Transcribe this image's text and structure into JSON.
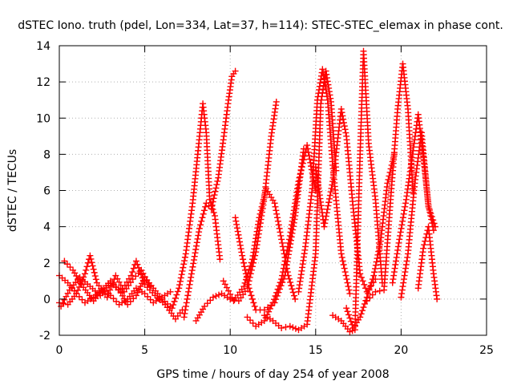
{
  "chart_data": {
    "type": "scatter",
    "title": "dSTEC Iono. truth (pdel, Lon=334, Lat=37, h=114): STEC-STEC_elemax in phase cont.",
    "xlabel": "GPS time / hours of day 254 of year 2008",
    "ylabel": "dSTEC  / TECUs",
    "xlim": [
      0,
      25
    ],
    "ylim": [
      -2,
      14
    ],
    "x_ticks": [
      0,
      5,
      10,
      15,
      20,
      25
    ],
    "y_ticks": [
      -2,
      0,
      2,
      4,
      6,
      8,
      10,
      12,
      14
    ],
    "grid": true,
    "marker": "plus",
    "color": "#ff0000",
    "series": [
      {
        "x": [
          0.0,
          0.5,
          1.0,
          1.5,
          2.0,
          2.5,
          3.0,
          3.5,
          4.0,
          4.5,
          5.0,
          5.5,
          6.0,
          6.5
        ],
        "y": [
          1.3,
          0.9,
          0.3,
          -0.2,
          0.1,
          0.5,
          0.2,
          -0.3,
          0.0,
          0.6,
          0.3,
          -0.2,
          0.1,
          0.4
        ]
      },
      {
        "x": [
          0.0,
          0.5,
          1.0,
          1.5,
          1.8,
          2.2,
          2.8,
          3.3,
          3.8,
          4.3,
          4.8,
          5.3
        ],
        "y": [
          -0.2,
          -0.3,
          0.3,
          1.4,
          2.4,
          0.9,
          0.1,
          1.3,
          0.4,
          1.1,
          1.6,
          0.7
        ]
      },
      {
        "x": [
          0.3,
          0.8,
          1.3,
          2.0,
          2.6,
          3.0,
          3.5,
          4.0,
          4.5,
          5.0,
          5.5,
          6.0,
          6.5
        ],
        "y": [
          2.1,
          1.6,
          0.8,
          -0.1,
          0.6,
          1.0,
          0.5,
          -0.3,
          0.2,
          1.2,
          0.6,
          0.0,
          -0.4
        ]
      },
      {
        "x": [
          0.1,
          0.6,
          1.2,
          1.8,
          2.4,
          3.0,
          3.6,
          4.2,
          4.5,
          5.0,
          5.6,
          6.2,
          6.8,
          7.2
        ],
        "y": [
          -0.4,
          0.5,
          1.2,
          0.7,
          0.2,
          0.9,
          0.4,
          1.3,
          2.1,
          0.8,
          0.2,
          -0.3,
          -1.1,
          -0.6
        ]
      },
      {
        "x": [
          6.6,
          7.0,
          7.4,
          7.8,
          8.1,
          8.4,
          8.6,
          8.8,
          9.1,
          9.4
        ],
        "y": [
          -0.5,
          0.6,
          2.5,
          5.3,
          8.0,
          10.8,
          9.2,
          5.5,
          4.6,
          2.2
        ]
      },
      {
        "x": [
          7.3,
          7.7,
          8.2,
          8.6,
          8.9,
          9.3,
          9.6,
          9.9,
          10.1,
          10.3
        ],
        "y": [
          -1.0,
          1.2,
          3.9,
          5.3,
          5.0,
          6.7,
          8.8,
          11.0,
          12.3,
          12.6
        ]
      },
      {
        "x": [
          8.0,
          8.5,
          9.0,
          9.5,
          10.0,
          10.5,
          11.0,
          11.5,
          12.0,
          12.4,
          12.7
        ],
        "y": [
          -1.2,
          -0.4,
          0.1,
          0.3,
          0.0,
          -0.1,
          0.6,
          2.6,
          5.6,
          9.0,
          10.9
        ]
      },
      {
        "x": [
          10.3,
          10.7,
          11.1,
          11.5,
          12.0,
          12.6,
          13.2,
          13.8,
          14.3
        ],
        "y": [
          4.5,
          2.4,
          0.6,
          -0.6,
          -0.6,
          -0.2,
          1.3,
          4.6,
          8.3
        ]
      },
      {
        "x": [
          9.6,
          10.2,
          10.8,
          11.3,
          11.7,
          12.1,
          12.6,
          13.0,
          13.4,
          13.8
        ],
        "y": [
          1.0,
          -0.1,
          0.7,
          2.2,
          4.5,
          6.1,
          5.3,
          3.3,
          1.3,
          0.0
        ]
      },
      {
        "x": [
          11.0,
          11.5,
          12.0,
          12.5,
          13.0,
          13.5,
          14.0,
          14.5,
          15.0
        ],
        "y": [
          -1.0,
          -1.5,
          -1.2,
          -0.2,
          1.1,
          3.5,
          6.5,
          8.5,
          6.0
        ]
      },
      {
        "x": [
          12.0,
          12.5,
          13.0,
          13.5,
          14.0,
          14.5,
          15.0,
          15.3,
          15.6,
          15.9,
          16.2
        ],
        "y": [
          -0.9,
          -1.2,
          -1.6,
          -1.5,
          -1.7,
          -1.4,
          2.5,
          10.8,
          12.6,
          10.9,
          7.1
        ]
      },
      {
        "x": [
          14.0,
          14.4,
          14.8,
          15.1,
          15.4,
          15.7,
          16.0,
          16.5,
          17.0
        ],
        "y": [
          0.4,
          2.9,
          6.1,
          11.0,
          12.7,
          11.0,
          7.4,
          2.5,
          0.3
        ]
      },
      {
        "x": [
          15.0,
          15.5,
          16.0,
          16.5,
          16.8,
          17.2,
          17.6,
          18.0,
          18.5
        ],
        "y": [
          7.3,
          4.0,
          6.5,
          10.5,
          9.0,
          5.0,
          1.4,
          0.4,
          1.1
        ]
      },
      {
        "x": [
          16.0,
          16.5,
          17.0,
          17.3,
          17.6,
          17.8,
          18.1,
          18.5,
          18.9
        ],
        "y": [
          -0.9,
          -1.2,
          -1.8,
          -1.7,
          8.0,
          13.7,
          8.6,
          5.5,
          0.9
        ]
      },
      {
        "x": [
          16.8,
          17.2,
          17.6,
          18.0,
          18.4,
          18.8,
          19.2,
          19.6
        ],
        "y": [
          -0.5,
          -1.6,
          -1.0,
          0.1,
          1.3,
          3.2,
          6.4,
          8.0
        ]
      },
      {
        "x": [
          18.0,
          18.5,
          19.0,
          19.4,
          19.8,
          20.1,
          20.4,
          20.7
        ],
        "y": [
          -0.1,
          0.4,
          0.5,
          5.7,
          10.5,
          13.0,
          10.5,
          5.9
        ]
      },
      {
        "x": [
          19.5,
          19.9,
          20.3,
          20.7,
          21.0,
          21.3,
          21.6,
          21.9
        ],
        "y": [
          0.9,
          3.3,
          5.5,
          8.2,
          10.2,
          7.9,
          5.2,
          3.8
        ]
      },
      {
        "x": [
          20.0,
          20.4,
          20.8,
          21.2,
          21.6,
          22.0
        ],
        "y": [
          0.1,
          2.5,
          6.4,
          9.2,
          5.1,
          4.0
        ]
      },
      {
        "x": [
          21.0,
          21.3,
          21.6,
          21.9,
          22.1
        ],
        "y": [
          0.6,
          2.8,
          4.0,
          1.4,
          0.0
        ]
      }
    ]
  }
}
